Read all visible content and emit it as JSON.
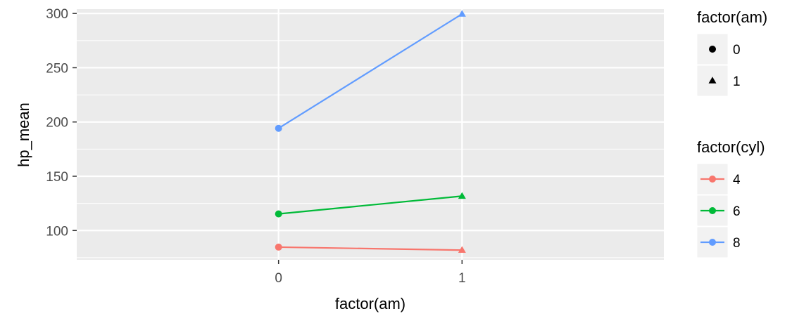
{
  "chart_data": {
    "type": "line",
    "xlabel": "factor(am)",
    "ylabel": "hp_mean",
    "categories": [
      "0",
      "1"
    ],
    "ylim": [
      73,
      304
    ],
    "yticks": [
      100,
      150,
      200,
      250,
      300
    ],
    "grid": true,
    "series": [
      {
        "name": "4",
        "color": "#F8766D",
        "values": [
          84.7,
          81.9
        ]
      },
      {
        "name": "6",
        "color": "#00BA38",
        "values": [
          115.3,
          131.7
        ]
      },
      {
        "name": "8",
        "color": "#619CFF",
        "values": [
          194.2,
          299.5
        ]
      }
    ],
    "legend_placement": "right",
    "legends": [
      {
        "title": "factor(am)",
        "type": "shape",
        "items": [
          {
            "label": "0",
            "shape": "circle"
          },
          {
            "label": "1",
            "shape": "triangle"
          }
        ]
      },
      {
        "title": "factor(cyl)",
        "type": "color",
        "items": [
          {
            "label": "4",
            "color": "#F8766D"
          },
          {
            "label": "6",
            "color": "#00BA38"
          },
          {
            "label": "8",
            "color": "#619CFF"
          }
        ]
      }
    ]
  }
}
